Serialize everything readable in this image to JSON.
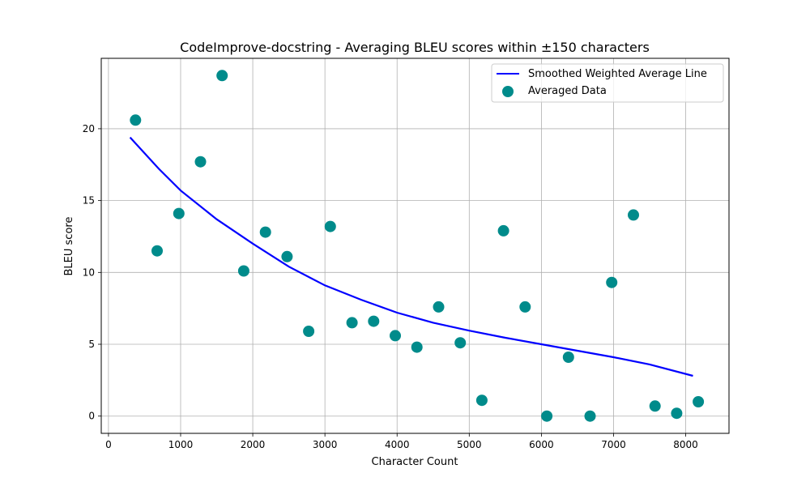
{
  "chart_data": {
    "type": "scatter",
    "title": "CodeImprove-docstring - Averaging BLEU scores within ±150 characters",
    "xlabel": "Character Count",
    "ylabel": "BLEU score",
    "xlim": [
      -100,
      8600
    ],
    "ylim": [
      -1.2,
      24.9
    ],
    "xticks": [
      0,
      1000,
      2000,
      3000,
      4000,
      5000,
      6000,
      7000,
      8000
    ],
    "yticks": [
      0,
      5,
      10,
      15,
      20
    ],
    "grid": true,
    "legend_position": "top-right",
    "series": [
      {
        "name": "Smoothed Weighted Average Line",
        "kind": "line",
        "color": "#0000ff",
        "x": [
          300,
          700,
          1000,
          1500,
          2000,
          2500,
          3000,
          3500,
          4000,
          4500,
          5000,
          5500,
          6000,
          6500,
          7000,
          7500,
          8100
        ],
        "y": [
          19.4,
          17.2,
          15.7,
          13.7,
          12.0,
          10.4,
          9.1,
          8.1,
          7.2,
          6.5,
          5.95,
          5.45,
          5.0,
          4.55,
          4.1,
          3.6,
          2.8
        ]
      },
      {
        "name": "Averaged Data",
        "kind": "scatter",
        "color": "#008b8b",
        "x": [
          375,
          675,
          975,
          1275,
          1575,
          1875,
          2175,
          2475,
          2775,
          3075,
          3375,
          3675,
          3975,
          4275,
          4575,
          4875,
          5175,
          5475,
          5775,
          6075,
          6375,
          6675,
          6975,
          7275,
          7575,
          7875,
          8175
        ],
        "y": [
          20.6,
          11.5,
          14.1,
          17.7,
          23.7,
          10.1,
          12.8,
          11.1,
          5.9,
          13.2,
          6.5,
          6.6,
          5.6,
          4.8,
          7.6,
          5.1,
          1.1,
          12.9,
          7.6,
          0.0,
          4.1,
          0.0,
          9.3,
          14.0,
          0.7,
          0.2,
          1.0
        ]
      }
    ]
  }
}
